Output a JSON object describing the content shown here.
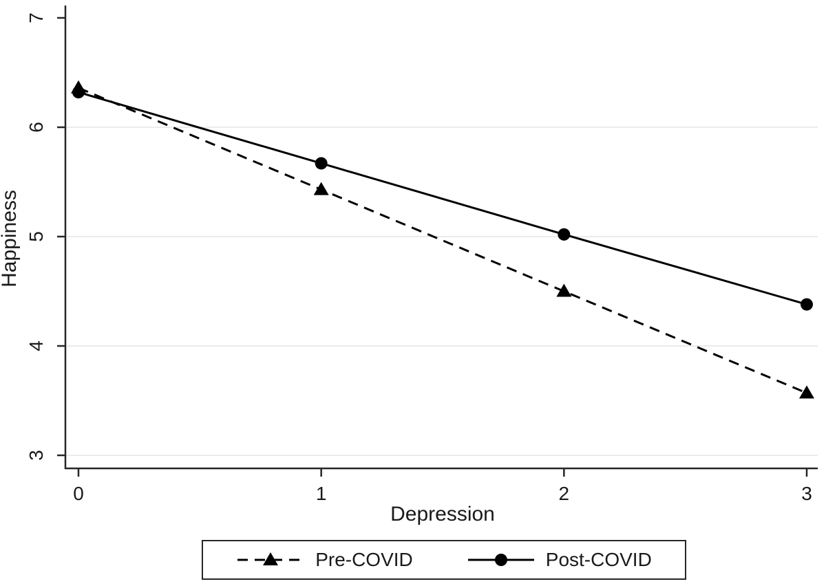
{
  "chart_data": {
    "type": "line",
    "title": "",
    "xlabel": "Depression",
    "ylabel": "Happiness",
    "x": [
      0,
      1,
      2,
      3
    ],
    "x_ticks": [
      "0",
      "1",
      "2",
      "3"
    ],
    "y_ticks": [
      "3",
      "4",
      "5",
      "6",
      "7"
    ],
    "xlim": [
      0,
      3
    ],
    "ylim": [
      3,
      7
    ],
    "grid": "horizontal",
    "grid_values": [
      3,
      4,
      5,
      6
    ],
    "legend_position": "bottom-center",
    "series": [
      {
        "name": "Pre-COVID",
        "marker": "triangle",
        "line_style": "dashed",
        "color": "#000000",
        "values": [
          6.36,
          5.43,
          4.5,
          3.57
        ]
      },
      {
        "name": "Post-COVID",
        "marker": "circle",
        "line_style": "solid",
        "color": "#000000",
        "values": [
          6.32,
          5.67,
          5.02,
          4.38
        ]
      }
    ]
  },
  "colors": {
    "background": "#ffffff",
    "axis": "#262626",
    "grid": "#ebebeb",
    "text": "#1a1a1a",
    "series": "#000000",
    "legend_border": "#262626"
  }
}
